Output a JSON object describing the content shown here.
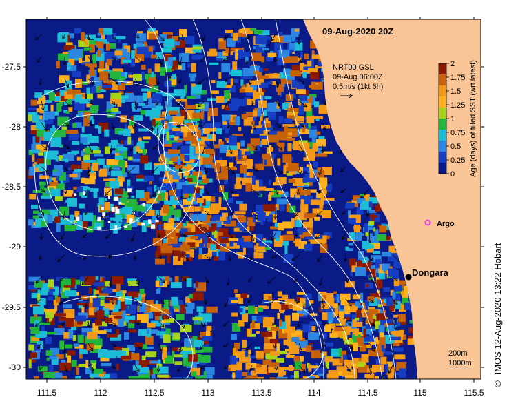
{
  "map": {
    "title": "09-Aug-2020 20Z",
    "x_ticks": [
      "111.5",
      "112",
      "112.5",
      "113",
      "113.5",
      "114",
      "114.5",
      "115",
      "115.5"
    ],
    "y_ticks": [
      "-27.5",
      "-28",
      "-28.5",
      "-29",
      "-29.5",
      "-30"
    ],
    "current_info": {
      "line1": "NRT00 GSL",
      "line2": "09-Aug 06:00Z",
      "line3": "0.5m/s (1kt 6h)"
    },
    "colorbar": {
      "label": "Age (days) of filled SST (wrt latest)",
      "ticks": [
        "2",
        "1.75",
        "1.5",
        "1.25",
        "1",
        "0.75",
        "0.5",
        "0.25",
        "0"
      ],
      "colors": [
        "#8b1a00",
        "#c8620a",
        "#f29a18",
        "#ffb21c",
        "#a8d418",
        "#22b53c",
        "#1dbcd6",
        "#2a86e0",
        "#153ec2",
        "#0a1a86"
      ]
    },
    "places": {
      "argo_label": "Argo",
      "dongara_label": "Dongara"
    },
    "scale": {
      "depth1": "200m",
      "depth2": "1000m"
    },
    "footer": "IMOS 12-Aug-2020 13:22 Hobart",
    "copyright_symbol": "©",
    "colors": {
      "land": "#f9c596",
      "background_age_0": "#0a1a86",
      "contour": "#ffffff",
      "argo_marker": "#e040e0"
    }
  }
}
